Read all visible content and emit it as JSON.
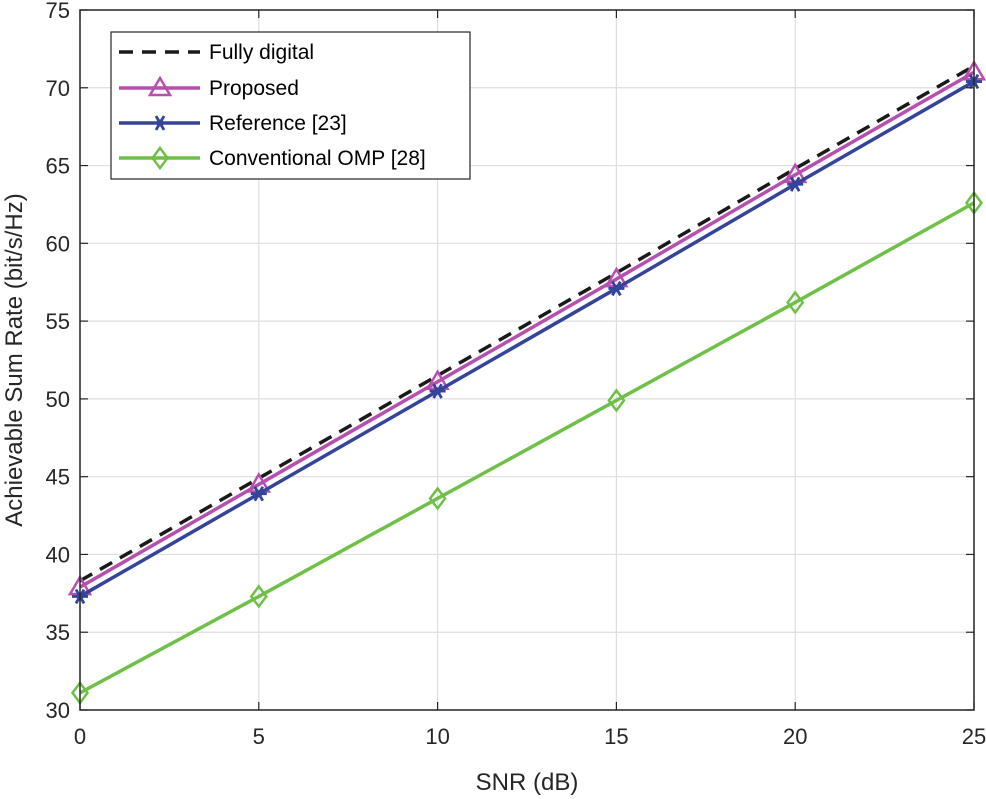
{
  "chart_data": {
    "type": "line",
    "title": "",
    "xlabel": "SNR (dB)",
    "ylabel": "Achievable Sum Rate (bit/s/Hz)",
    "xlim": [
      0,
      25
    ],
    "ylim": [
      30,
      75
    ],
    "xticks": [
      0,
      5,
      10,
      15,
      20,
      25
    ],
    "yticks": [
      30,
      35,
      40,
      45,
      50,
      55,
      60,
      65,
      70,
      75
    ],
    "grid": true,
    "legend_position": "top-left",
    "x": [
      0,
      5,
      10,
      15,
      20,
      25
    ],
    "series": [
      {
        "name": "Fully digital",
        "values": [
          38.3,
          44.9,
          51.5,
          58.1,
          64.8,
          71.4
        ],
        "color": "#1a1a1a",
        "line_style": "dashed",
        "marker": "none"
      },
      {
        "name": "Proposed",
        "values": [
          37.9,
          44.5,
          51.1,
          57.7,
          64.4,
          71.0
        ],
        "color": "#b74fb0",
        "line_style": "solid",
        "marker": "triangle"
      },
      {
        "name": "Reference [23]",
        "values": [
          37.3,
          43.9,
          50.5,
          57.1,
          63.8,
          70.4
        ],
        "color": "#33449a",
        "line_style": "solid",
        "marker": "asterisk"
      },
      {
        "name": "Conventional OMP [28]",
        "values": [
          31.1,
          37.3,
          43.6,
          49.9,
          56.2,
          62.6
        ],
        "color": "#6ec046",
        "line_style": "solid",
        "marker": "diamond"
      }
    ]
  }
}
